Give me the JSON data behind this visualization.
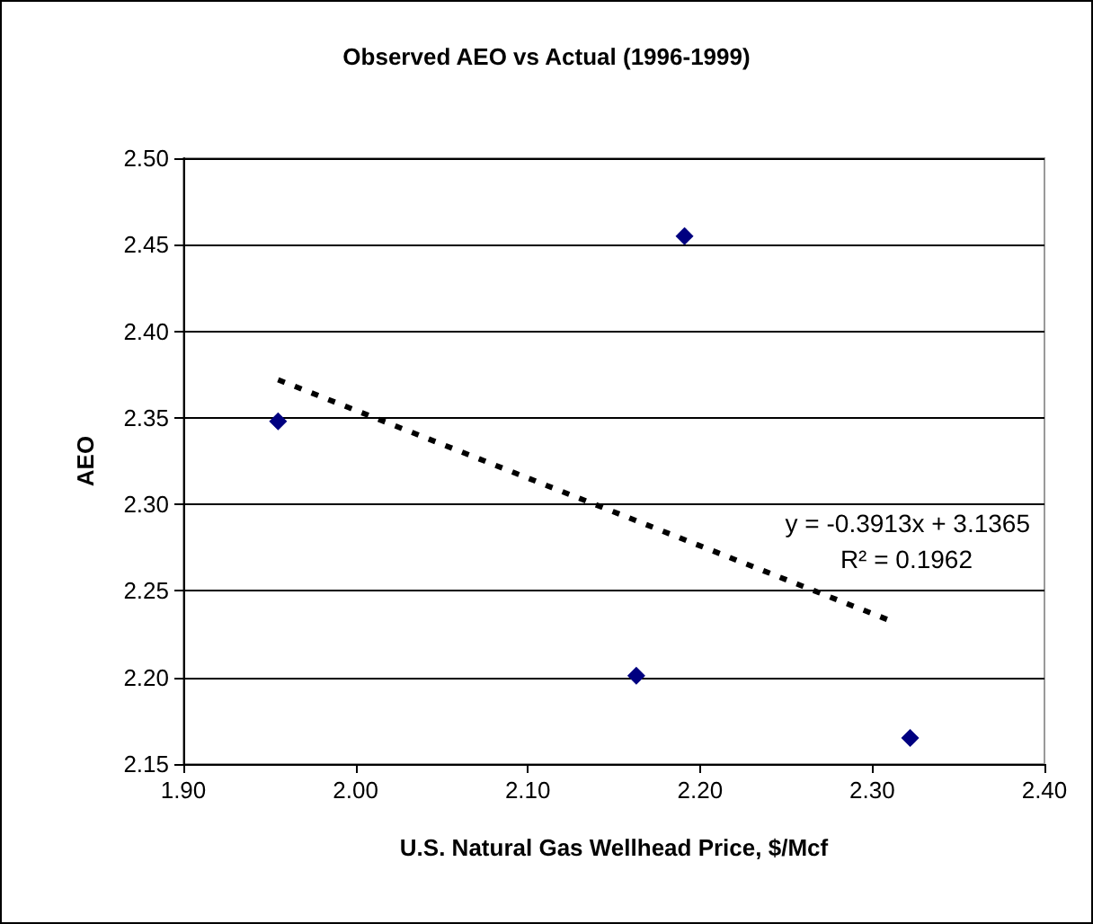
{
  "chart_data": {
    "type": "scatter",
    "title": "Observed AEO vs Actual (1996-1999)",
    "xlabel": "U.S. Natural Gas Wellhead Price, $/Mcf",
    "ylabel": "AEO",
    "series": [
      {
        "color": "#000080",
        "marker": "diamond",
        "x": [
          1.955,
          2.191,
          2.163,
          2.322
        ],
        "values": [
          2.348,
          2.455,
          2.201,
          2.165
        ]
      },
      {
        "type": "line",
        "color": "#000000",
        "line_style": "dashed",
        "marker": "none",
        "x": [
          1.955,
          2.31
        ],
        "values": [
          2.372,
          2.233
        ]
      }
    ],
    "xlim": [
      1.9,
      2.4
    ],
    "xticks": [
      {
        "value": 1.9,
        "label": "1.90"
      },
      {
        "value": 2.0,
        "label": "2.00"
      },
      {
        "value": 2.1,
        "label": "2.10"
      },
      {
        "value": 2.2,
        "label": "2.20"
      },
      {
        "value": 2.3,
        "label": "2.30"
      },
      {
        "value": 2.4,
        "label": "2.40"
      }
    ],
    "ylim": [
      2.15,
      2.5
    ],
    "yticks": [
      {
        "value": 2.15,
        "label": "2.15"
      },
      {
        "value": 2.2,
        "label": "2.20"
      },
      {
        "value": 2.25,
        "label": "2.25"
      },
      {
        "value": 2.3,
        "label": "2.30"
      },
      {
        "value": 2.35,
        "label": "2.35"
      },
      {
        "value": 2.4,
        "label": "2.40"
      },
      {
        "value": 2.45,
        "label": "2.45"
      },
      {
        "value": 2.5,
        "label": "2.50"
      }
    ],
    "grid": "y",
    "annotations": [
      "y = -0.3913x + 3.1365",
      "R² = 0.1962"
    ]
  }
}
